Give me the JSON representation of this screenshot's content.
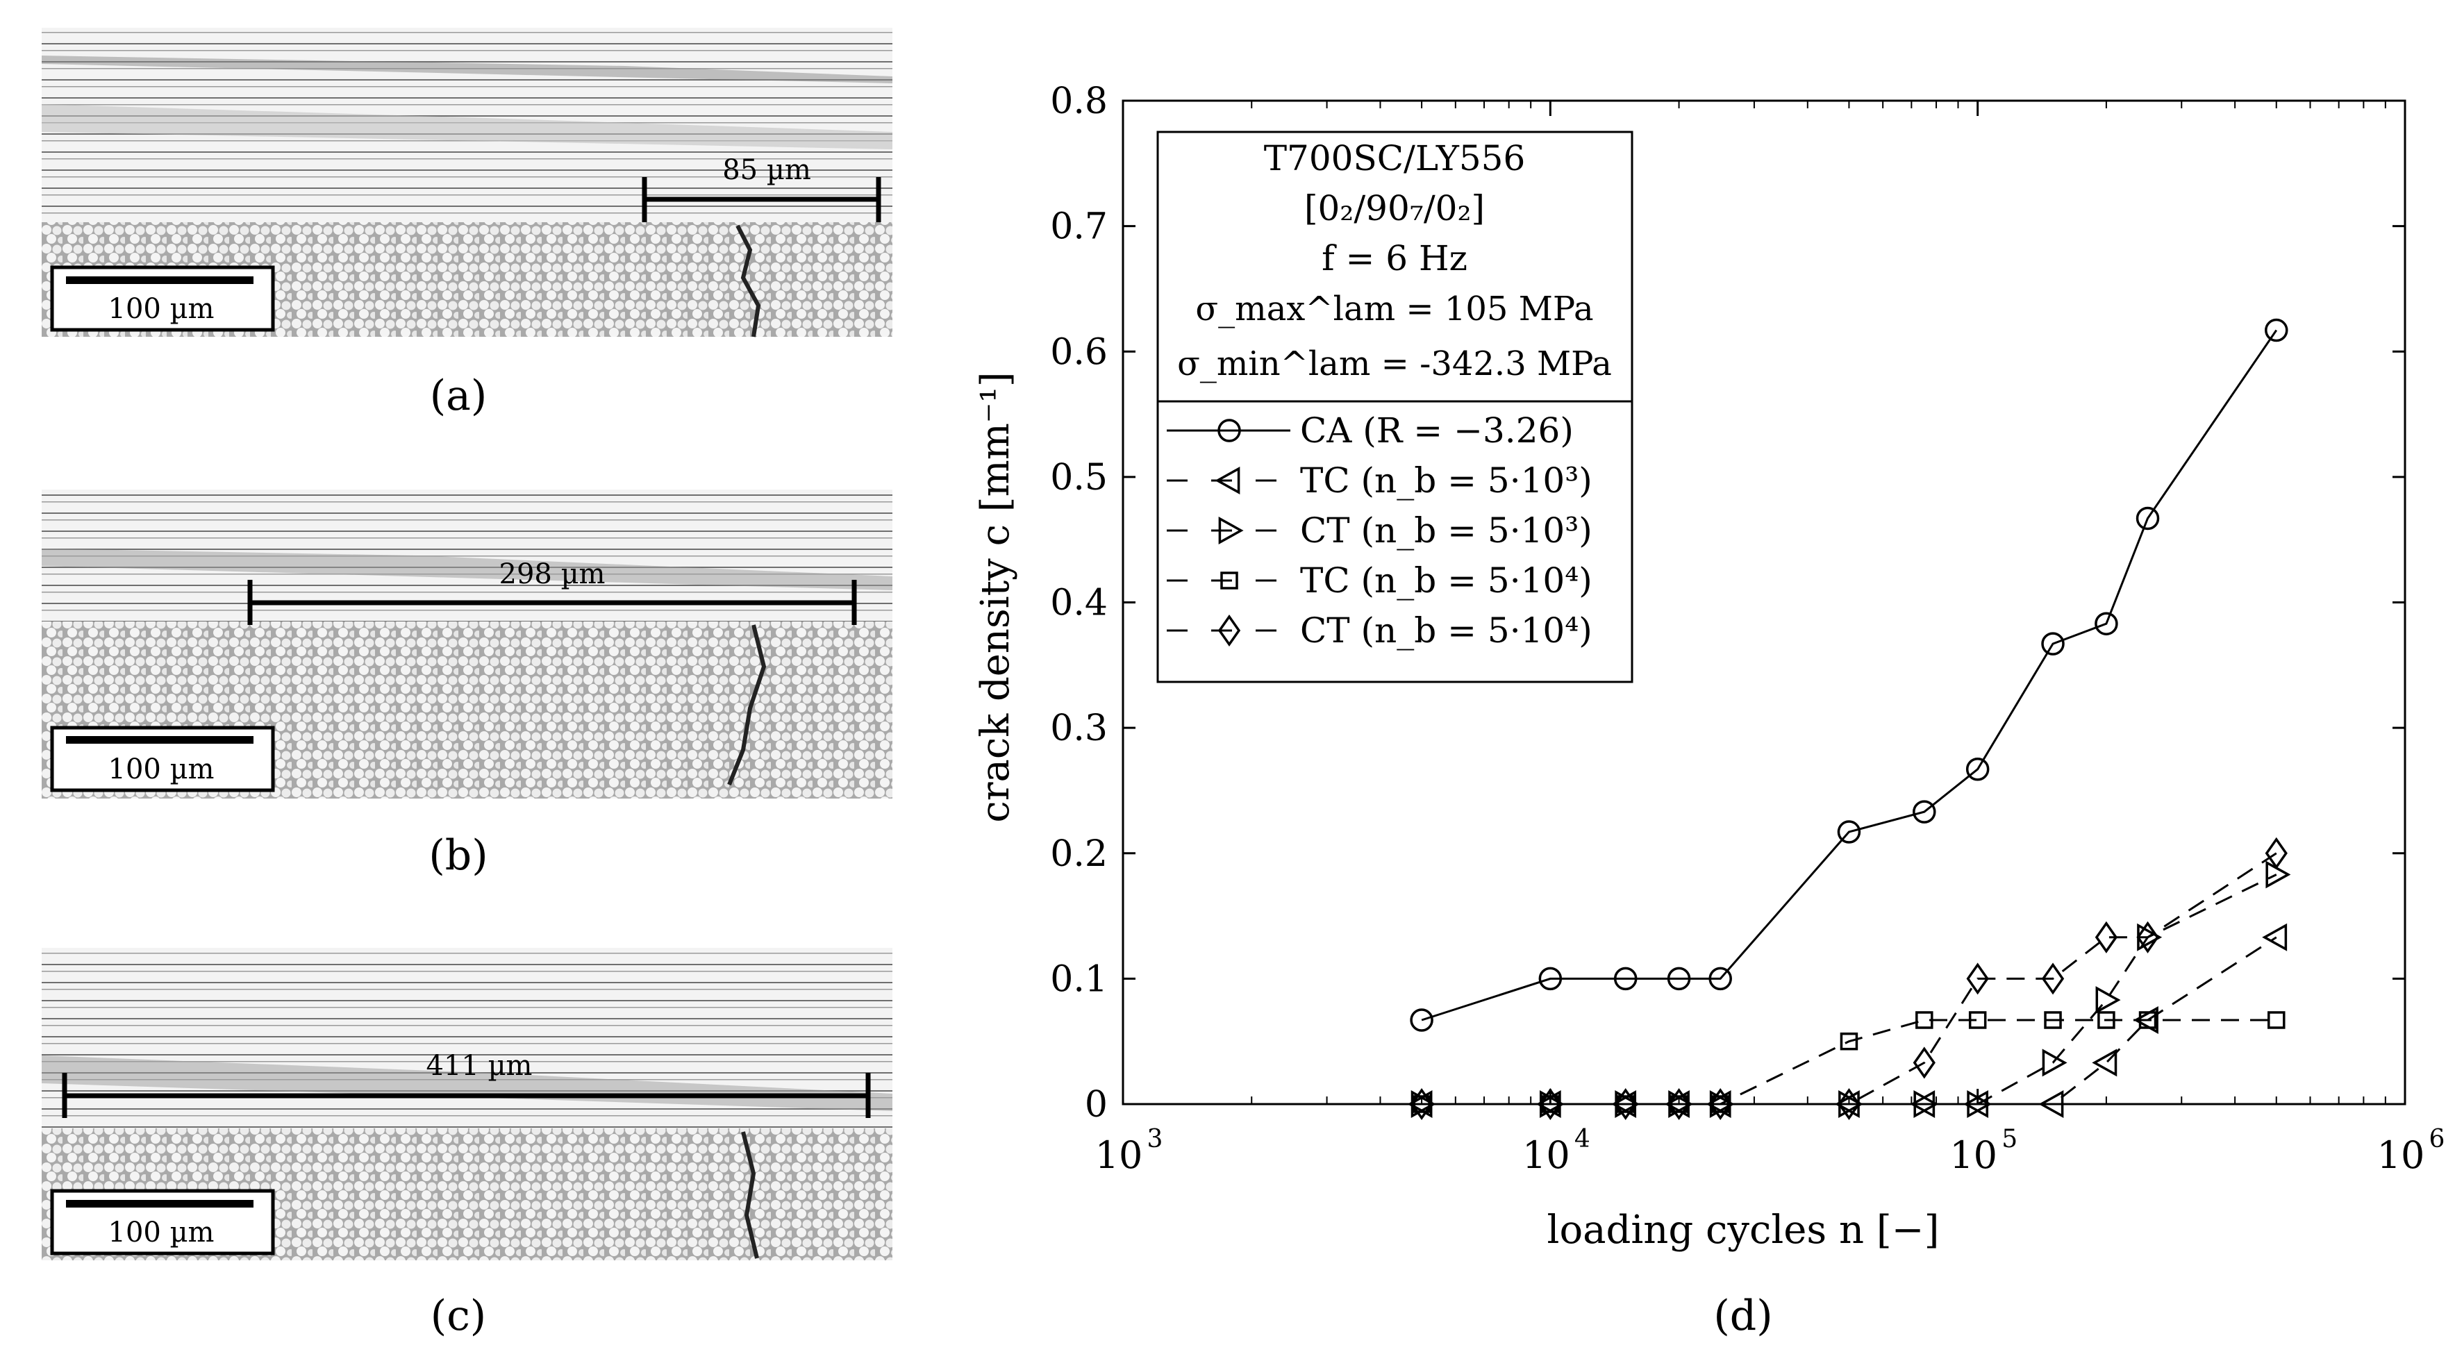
{
  "micrographs": [
    {
      "label": "(a)",
      "scale_bar": "100 µm",
      "crack_measure": "85 µm"
    },
    {
      "label": "(b)",
      "scale_bar": "100 µm",
      "crack_measure": "298 µm"
    },
    {
      "label": "(c)",
      "scale_bar": "100 µm",
      "crack_measure": "411 µm"
    }
  ],
  "chart_panel_label": "(d)",
  "chart_data": {
    "type": "line",
    "xlabel": "loading cycles n [−]",
    "ylabel": "crack density c [mm⁻¹]",
    "xscale": "log",
    "xlim": [
      1000,
      1000000
    ],
    "ylim": [
      0,
      0.8
    ],
    "x_ticks": [
      {
        "value": 1000,
        "base": "10",
        "exp": "3"
      },
      {
        "value": 10000,
        "base": "10",
        "exp": "4"
      },
      {
        "value": 100000,
        "base": "10",
        "exp": "5"
      },
      {
        "value": 1000000,
        "base": "10",
        "exp": "6"
      }
    ],
    "y_ticks": [
      {
        "value": 0,
        "label": "0"
      },
      {
        "value": 0.1,
        "label": "0.1"
      },
      {
        "value": 0.2,
        "label": "0.2"
      },
      {
        "value": 0.3,
        "label": "0.3"
      },
      {
        "value": 0.4,
        "label": "0.4"
      },
      {
        "value": 0.5,
        "label": "0.5"
      },
      {
        "value": 0.6,
        "label": "0.6"
      },
      {
        "value": 0.7,
        "label": "0.7"
      },
      {
        "value": 0.8,
        "label": "0.8"
      }
    ],
    "legend_placement": "top-left",
    "info_box": {
      "line1": "T700SC/LY556",
      "line2": "[0₂/90₇/0₂]",
      "line3": "f = 6 Hz",
      "line4": "σ_max^lam = 105 MPa",
      "line5": "σ_min^lam = -342.3 MPa"
    },
    "series": [
      {
        "name": "CA (R = −3.26)",
        "marker": "circle",
        "dash": "solid",
        "points": [
          [
            5000,
            0.067
          ],
          [
            10000,
            0.1
          ],
          [
            15000,
            0.1
          ],
          [
            20000,
            0.1
          ],
          [
            25000,
            0.1
          ],
          [
            50000,
            0.217
          ],
          [
            75000,
            0.233
          ],
          [
            100000,
            0.267
          ],
          [
            150000,
            0.367
          ],
          [
            200000,
            0.383
          ],
          [
            250000,
            0.467
          ],
          [
            500000,
            0.617
          ]
        ]
      },
      {
        "name": "TC (n_b = 5·10³)",
        "marker": "triangle-left",
        "dash": "dashed",
        "points": [
          [
            5000,
            0
          ],
          [
            10000,
            0
          ],
          [
            15000,
            0
          ],
          [
            20000,
            0
          ],
          [
            25000,
            0
          ],
          [
            50000,
            0
          ],
          [
            75000,
            0
          ],
          [
            100000,
            0
          ],
          [
            150000,
            0
          ],
          [
            200000,
            0.033
          ],
          [
            250000,
            0.067
          ],
          [
            500000,
            0.133
          ]
        ]
      },
      {
        "name": "CT (n_b = 5·10³)",
        "marker": "triangle-right",
        "dash": "dashed",
        "points": [
          [
            5000,
            0
          ],
          [
            10000,
            0
          ],
          [
            15000,
            0
          ],
          [
            20000,
            0
          ],
          [
            25000,
            0
          ],
          [
            50000,
            0
          ],
          [
            75000,
            0
          ],
          [
            100000,
            0
          ],
          [
            150000,
            0.033
          ],
          [
            200000,
            0.083
          ],
          [
            250000,
            0.133
          ],
          [
            500000,
            0.183
          ]
        ]
      },
      {
        "name": "TC (n_b = 5·10⁴)",
        "marker": "square",
        "dash": "dashed",
        "points": [
          [
            5000,
            0
          ],
          [
            10000,
            0
          ],
          [
            15000,
            0
          ],
          [
            20000,
            0
          ],
          [
            25000,
            0
          ],
          [
            50000,
            0.05
          ],
          [
            75000,
            0.067
          ],
          [
            100000,
            0.067
          ],
          [
            150000,
            0.067
          ],
          [
            200000,
            0.067
          ],
          [
            250000,
            0.067
          ],
          [
            500000,
            0.067
          ]
        ]
      },
      {
        "name": "CT (n_b = 5·10⁴)",
        "marker": "diamond",
        "dash": "dashed",
        "points": [
          [
            5000,
            0
          ],
          [
            10000,
            0
          ],
          [
            15000,
            0
          ],
          [
            20000,
            0
          ],
          [
            25000,
            0
          ],
          [
            50000,
            0
          ],
          [
            75000,
            0.033
          ],
          [
            100000,
            0.1
          ],
          [
            150000,
            0.1
          ],
          [
            200000,
            0.133
          ],
          [
            250000,
            0.133
          ],
          [
            500000,
            0.2
          ]
        ]
      }
    ]
  }
}
